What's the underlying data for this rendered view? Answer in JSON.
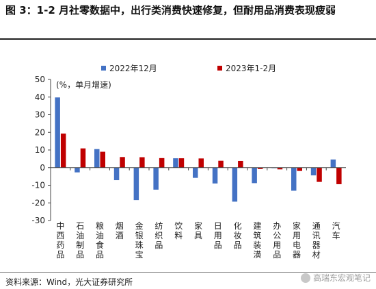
{
  "title": "图 3：1-2 月社零数据中，出行类消费快速修复，但耐用品消费表现疲弱",
  "footer": "资料来源：Wind，光大证券研究所",
  "watermark": "高瑞东宏观笔记",
  "chart_data": {
    "type": "bar",
    "annotation": "(%，单月增速)",
    "categories": [
      "中西药品",
      "石油制品",
      "粮油食品",
      "烟酒",
      "金银珠宝",
      "纺织品",
      "饮料",
      "家具",
      "日用品",
      "化妆品",
      "建筑装潢",
      "办公用品",
      "家用电器",
      "通讯器材",
      "汽车"
    ],
    "series": [
      {
        "name": "2022年12月",
        "color": "#4472C4",
        "values": [
          39.8,
          -2.7,
          10.5,
          -7.1,
          -18.4,
          -12.5,
          5.3,
          -5.8,
          -9.0,
          -19.3,
          -8.8,
          -0.2,
          -13.1,
          -4.4,
          4.6
        ]
      },
      {
        "name": "2023年1-2月",
        "color": "#C00000",
        "values": [
          19.3,
          10.9,
          9.0,
          6.0,
          5.9,
          5.4,
          5.3,
          5.2,
          3.9,
          3.8,
          -0.8,
          -1.0,
          -1.9,
          -8.1,
          -9.4
        ]
      }
    ],
    "ylim": [
      -30,
      50
    ],
    "yticks": [
      -30,
      -20,
      -10,
      0,
      10,
      20,
      30,
      40,
      50
    ],
    "legend": "top"
  }
}
